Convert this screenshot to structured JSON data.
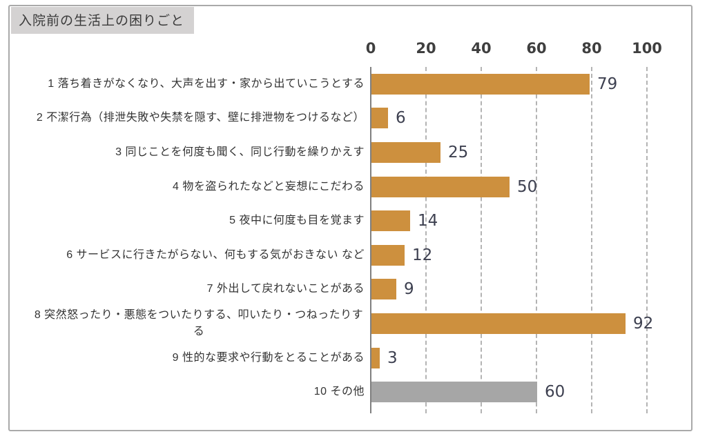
{
  "title": "入院前の生活上の困りごと",
  "colors": {
    "bar_orange": "#CD903E",
    "bar_gray": "#A6A6A6",
    "gridline": "#B3B3B3",
    "axis_line": "#7F7F7F",
    "value_label_text": "#3D4050",
    "tick_label_text": "#3F3F3F",
    "category_label_text": "#333333",
    "title_background": "#D4D2D2",
    "title_text": "#3A3A3A",
    "frame_border": "#A9A9A9"
  },
  "chart_data": {
    "type": "bar",
    "orientation": "horizontal",
    "title": "入院前の生活上の困りごと",
    "categories": [
      "1  落ち着きがなくなり、大声を出す・家から出ていこうとする",
      "2  不潔行為（排泄失敗や失禁を隠す、壁に排泄物をつけるなど）",
      "3  同じことを何度も聞く、同じ行動を繰りかえす",
      "4  物を盗られたなどと妄想にこだわる",
      "5  夜中に何度も目を覚ます",
      "6  サービスに行きたがらない、何もする気がおきない など",
      "7  外出して戻れないことがある",
      "8  突然怒ったり・悪態をついたりする、叩いたり・つねったりする",
      "9  性的な要求や行動をとることがある",
      "10  その他"
    ],
    "values": [
      79,
      6,
      25,
      50,
      14,
      12,
      9,
      92,
      3,
      60
    ],
    "bar_colors": [
      "#CD903E",
      "#CD903E",
      "#CD903E",
      "#CD903E",
      "#CD903E",
      "#CD903E",
      "#CD903E",
      "#CD903E",
      "#CD903E",
      "#A6A6A6"
    ],
    "x_ticks": [
      0,
      20,
      40,
      60,
      80,
      100
    ],
    "xlim": [
      0,
      100
    ],
    "grid": "vertical-dashed",
    "value_labels_shown": true,
    "xlabel": "",
    "ylabel": ""
  }
}
